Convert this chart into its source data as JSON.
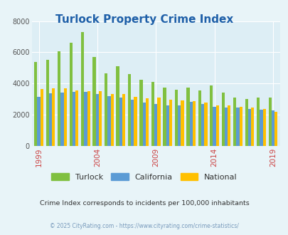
{
  "title": "Turlock Property Crime Index",
  "years": [
    1999,
    2000,
    2001,
    2002,
    2003,
    2004,
    2005,
    2006,
    2007,
    2008,
    2009,
    2010,
    2011,
    2012,
    2013,
    2014,
    2015,
    2016,
    2017,
    2018,
    2019
  ],
  "turlock": [
    5400,
    5500,
    6050,
    6600,
    7300,
    5700,
    4650,
    5100,
    4600,
    4250,
    4100,
    3750,
    3600,
    3750,
    3550,
    3850,
    3400,
    3100,
    3000,
    3100,
    3100
  ],
  "california": [
    3150,
    3350,
    3400,
    3450,
    3450,
    3300,
    3200,
    3100,
    2950,
    2750,
    2700,
    2600,
    2600,
    2800,
    2700,
    2500,
    2450,
    2450,
    2350,
    2300,
    2250
  ],
  "national": [
    3650,
    3700,
    3700,
    3550,
    3500,
    3500,
    3300,
    3300,
    3150,
    3050,
    3100,
    2950,
    2900,
    2850,
    2750,
    2600,
    2600,
    2500,
    2450,
    2350,
    2200
  ],
  "turlock_color": "#80c040",
  "california_color": "#5b9bd5",
  "national_color": "#ffc000",
  "bg_color": "#e8f4f8",
  "plot_bg_color": "#ddeef5",
  "ylim": [
    0,
    8000
  ],
  "yticks": [
    0,
    2000,
    4000,
    6000,
    8000
  ],
  "subtitle": "Crime Index corresponds to incidents per 100,000 inhabitants",
  "footer": "© 2025 CityRating.com - https://www.cityrating.com/crime-statistics/",
  "title_color": "#1e5fa8",
  "subtitle_color": "#333333",
  "footer_color": "#7799bb"
}
